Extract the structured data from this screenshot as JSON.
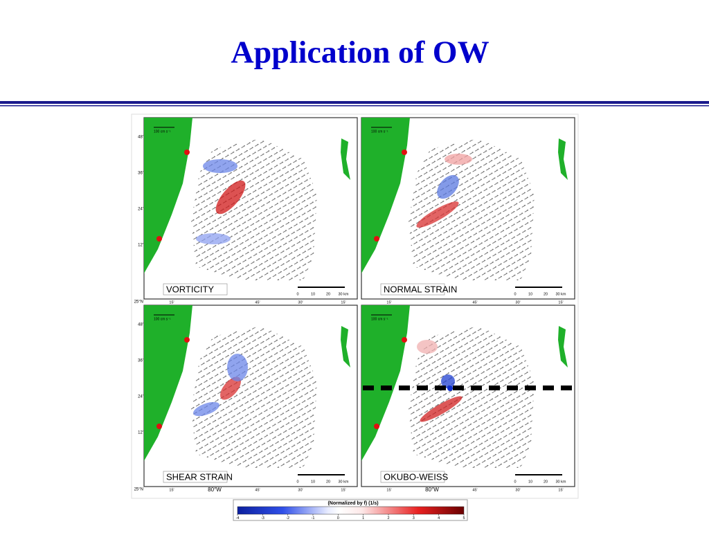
{
  "title": "Application of OW",
  "panels": [
    {
      "label": "VORTICITY"
    },
    {
      "label": "NORMAL STRAIN"
    },
    {
      "label": "SHEAR STRAIN"
    },
    {
      "label": "OKUBO-WEISS"
    }
  ],
  "map_axis": {
    "lat_labels": [
      "48'",
      "36'",
      "24'",
      "12'",
      "25°N"
    ],
    "lon_labels": [
      "15'",
      "80°W",
      "45'",
      "30'",
      "15'"
    ]
  },
  "scale_bar": [
    "0",
    "10",
    "20",
    "30 km"
  ],
  "velocity_scale": "100 cm s⁻¹",
  "colorbar": {
    "title": "(Normalized by f) (1/s)",
    "lim": [
      -4,
      5
    ],
    "ticks": [
      -4,
      -3,
      -2,
      -1,
      0,
      1,
      2,
      3,
      4,
      5
    ]
  }
}
